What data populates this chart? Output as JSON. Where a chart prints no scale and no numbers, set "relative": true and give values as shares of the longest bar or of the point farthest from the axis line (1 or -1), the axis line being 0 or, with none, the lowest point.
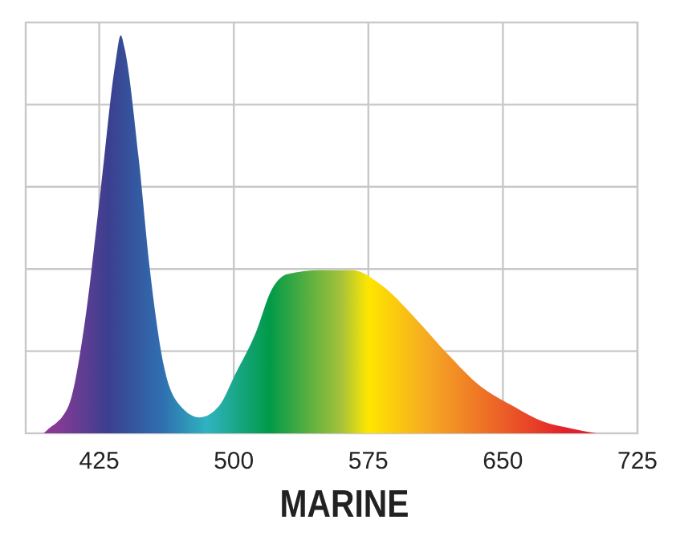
{
  "chart_data": {
    "type": "area",
    "title": "MARINE",
    "relative": true,
    "grid": true,
    "xlim": [
      384,
      725
    ],
    "xticks": [
      425,
      500,
      575,
      650,
      725
    ],
    "x": [
      394,
      396,
      408,
      417,
      426,
      434,
      437,
      439,
      447,
      453,
      461,
      470,
      481,
      492,
      501,
      512,
      521,
      530,
      548,
      566,
      583,
      601,
      619,
      637,
      655,
      672,
      688,
      702
    ],
    "series": [
      {
        "color": "#009a48",
        "values": [
          0,
          0.008,
          0.07,
          0.28,
          0.62,
          0.93,
          1,
          0.97,
          0.69,
          0.42,
          0.17,
          0.07,
          0.04,
          0.07,
          0.15,
          0.25,
          0.36,
          0.4,
          0.41,
          0.41,
          0.37,
          0.29,
          0.2,
          0.12,
          0.07,
          0.03,
          0.012,
          0
        ]
      }
    ]
  }
}
